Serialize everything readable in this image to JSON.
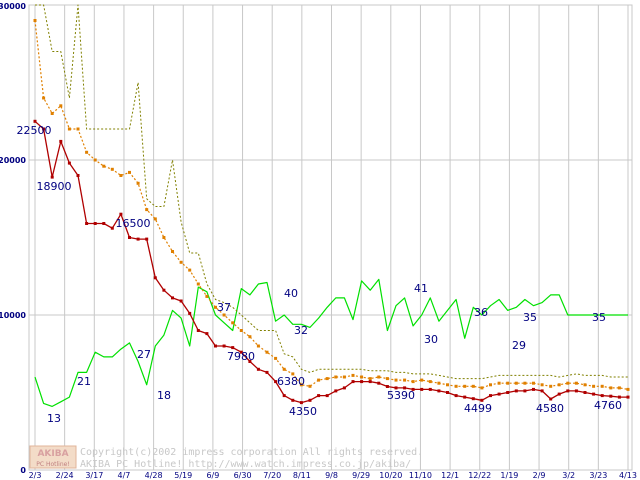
{
  "chart_data": {
    "type": "line",
    "ylim": [
      0,
      30000
    ],
    "y_ticks": [
      "0",
      "10000",
      "20000",
      "30000"
    ],
    "x_labels": [
      "2/3",
      "2/24",
      "3/17",
      "4/7",
      "4/28",
      "5/19",
      "6/9",
      "6/30",
      "7/20",
      "8/11",
      "9/8",
      "9/29",
      "10/20",
      "11/10",
      "12/1",
      "12/22",
      "1/19",
      "2/9",
      "3/2",
      "3/23",
      "4/13"
    ],
    "grid": true,
    "legend": "none",
    "colors": {
      "red_series": "#b00000",
      "orange_series": "#e08000",
      "olive_series": "#808000",
      "green_series": "#00e000",
      "axis_text": "#000080",
      "grid": "#c8c8c8"
    },
    "series": [
      {
        "style": "dark-red solid line with square markers",
        "values": [
          22500,
          22000,
          18900,
          21200,
          19800,
          19000,
          15900,
          15900,
          15900,
          15600,
          16500,
          15000,
          14900,
          14900,
          12400,
          11600,
          11100,
          10900,
          10100,
          9000,
          8800,
          8000,
          8000,
          7900,
          7600,
          7000,
          6500,
          6300,
          5700,
          4800,
          4500,
          4350,
          4500,
          4800,
          4800,
          5100,
          5300,
          5700,
          5700,
          5700,
          5600,
          5390,
          5300,
          5300,
          5200,
          5200,
          5200,
          5100,
          5000,
          4800,
          4700,
          4600,
          4499,
          4800,
          4900,
          5000,
          5100,
          5100,
          5200,
          5100,
          4580,
          4900,
          5100,
          5100,
          5000,
          4900,
          4800,
          4760,
          4700,
          4700
        ]
      },
      {
        "style": "orange dotted line with square markers",
        "values": [
          29000,
          24000,
          23000,
          23500,
          22000,
          22000,
          20500,
          20000,
          19600,
          19400,
          19000,
          19200,
          18500,
          16800,
          16200,
          15000,
          14100,
          13400,
          12900,
          12000,
          11200,
          10500,
          10000,
          9500,
          9000,
          8600,
          8000,
          7600,
          7200,
          6500,
          6200,
          5500,
          5400,
          5800,
          5900,
          6000,
          6000,
          6100,
          6000,
          5900,
          6000,
          5900,
          5800,
          5800,
          5700,
          5800,
          5700,
          5600,
          5500,
          5400,
          5400,
          5400,
          5300,
          5500,
          5600,
          5600,
          5600,
          5600,
          5600,
          5500,
          5400,
          5500,
          5600,
          5600,
          5500,
          5400,
          5400,
          5300,
          5300,
          5200
        ]
      },
      {
        "style": "olive dotted line",
        "values": [
          30000,
          30000,
          27000,
          27000,
          24000,
          30000,
          22000,
          22000,
          22000,
          22000,
          22000,
          22000,
          25000,
          17500,
          17000,
          17000,
          20000,
          16000,
          14000,
          14000,
          12000,
          11000,
          10800,
          10500,
          10000,
          9500,
          9000,
          9000,
          9000,
          7500,
          7300,
          6500,
          6300,
          6500,
          6500,
          6500,
          6500,
          6500,
          6500,
          6400,
          6400,
          6400,
          6300,
          6300,
          6200,
          6200,
          6200,
          6100,
          6000,
          5900,
          5900,
          5900,
          5900,
          6000,
          6100,
          6100,
          6100,
          6100,
          6100,
          6100,
          6100,
          6000,
          6100,
          6200,
          6100,
          6100,
          6100,
          6000,
          6000,
          6000
        ]
      },
      {
        "style": "bright green solid line",
        "values": [
          6000,
          4300,
          4100,
          4400,
          4700,
          6300,
          6300,
          7600,
          7300,
          7300,
          7800,
          8200,
          7000,
          5500,
          8000,
          8700,
          10300,
          9800,
          8000,
          11800,
          11500,
          10000,
          9500,
          9000,
          11700,
          11300,
          12000,
          12100,
          9600,
          10000,
          9400,
          9400,
          9200,
          9800,
          10500,
          11100,
          11100,
          9700,
          12200,
          11600,
          12300,
          9000,
          10600,
          11100,
          9300,
          10000,
          11100,
          9600,
          10300,
          11000,
          8500,
          10500,
          10000,
          10600,
          11000,
          10300,
          10500,
          11000,
          10600,
          10800,
          11300,
          11300,
          10000,
          10000,
          10000,
          10000,
          10000,
          10000,
          10000,
          10000
        ]
      }
    ],
    "annotations": [
      "22500",
      "18900",
      "16500",
      "27",
      "13",
      "21",
      "18",
      "37",
      "40",
      "41",
      "36",
      "35",
      "30",
      "29",
      "35",
      "32",
      "7980",
      "6380",
      "4350",
      "5390",
      "4499",
      "4580",
      "4760"
    ]
  },
  "watermark": {
    "badge_top": "AKIBA",
    "badge_bottom": "PC Hotline!",
    "line1": "Copyright(c)2002 impress corporation All rights reserved.",
    "line2": "AKIBA PC Hotline!  http://www.watch.impress.co.jp/akiba/"
  }
}
